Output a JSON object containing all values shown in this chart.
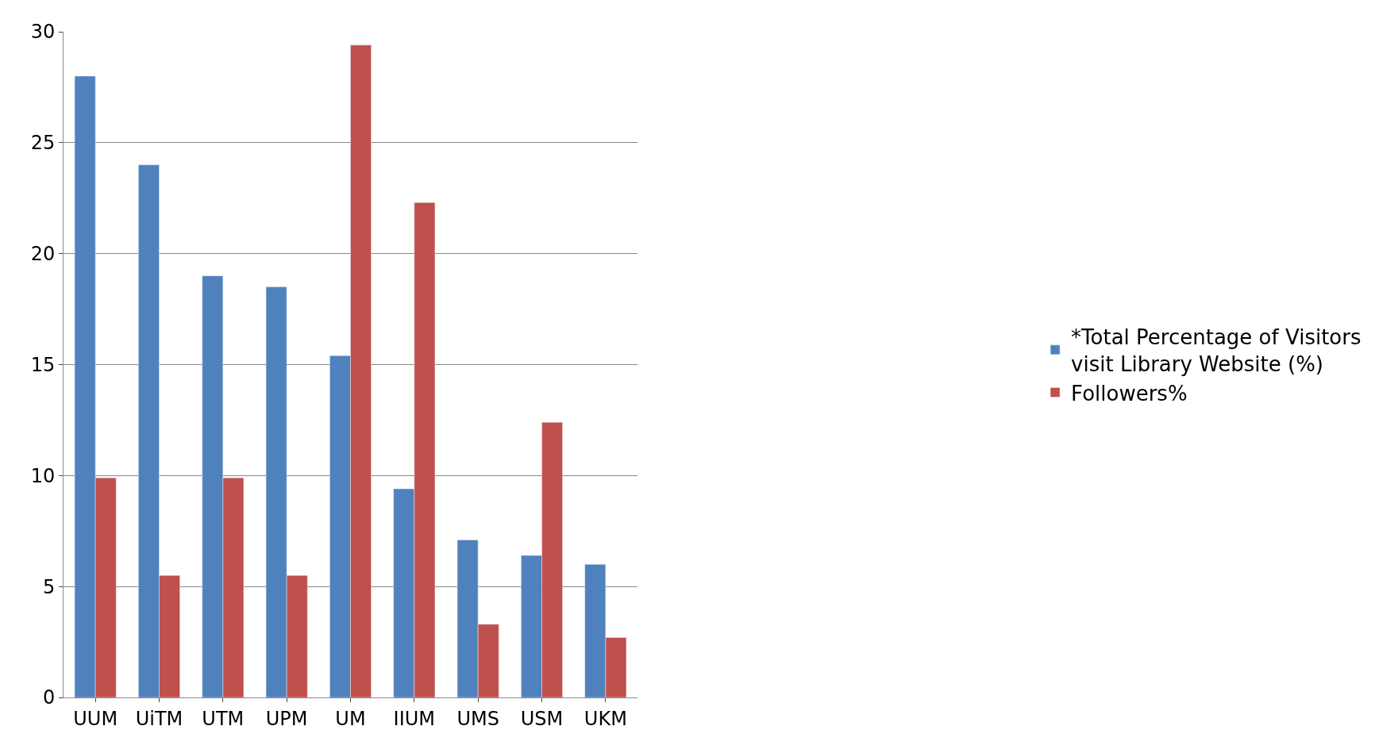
{
  "chart_data": {
    "type": "bar",
    "categories": [
      "UUM",
      "UiTM",
      "UTM",
      "UPM",
      "UM",
      "IIUM",
      "UMS",
      "USM",
      "UKM"
    ],
    "series": [
      {
        "name": "*Total Percentage of Visitors visit Library Website (%)",
        "color": "#4f81bd",
        "values": [
          28,
          24,
          19,
          18.5,
          15.4,
          9.4,
          7.1,
          6.4,
          6.0
        ]
      },
      {
        "name": "Followers%",
        "color": "#c0504d",
        "values": [
          9.9,
          5.5,
          9.9,
          5.5,
          29.4,
          22.3,
          3.3,
          12.4,
          2.7
        ]
      }
    ],
    "ylim": [
      0,
      30
    ],
    "yticks": [
      0,
      5,
      10,
      15,
      20,
      25,
      30
    ],
    "grid": "y",
    "legend": "right"
  }
}
